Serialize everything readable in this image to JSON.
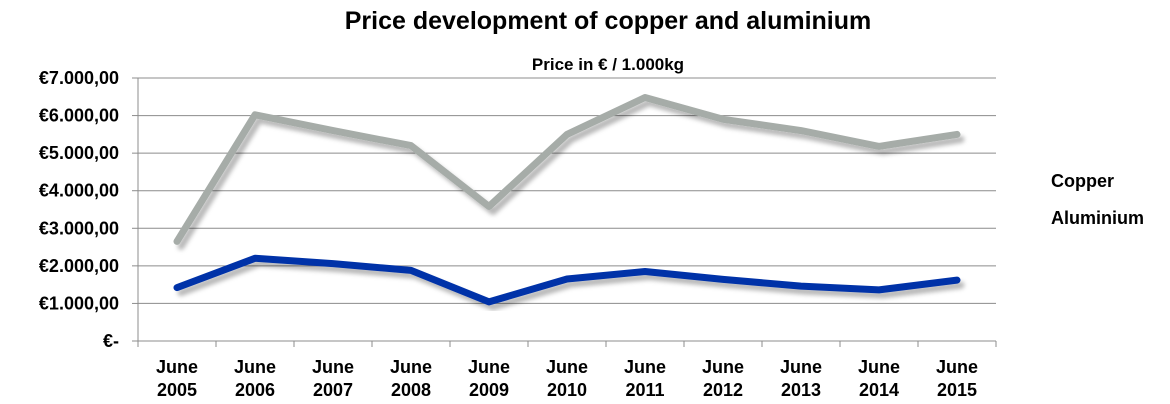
{
  "chart_data": {
    "type": "line",
    "title": "Price development of copper and aluminium",
    "subtitle": "Price in € / 1.000kg",
    "x": [
      [
        "June",
        "2005"
      ],
      [
        "June",
        "2006"
      ],
      [
        "June",
        "2007"
      ],
      [
        "June",
        "2008"
      ],
      [
        "June",
        "2009"
      ],
      [
        "June",
        "2010"
      ],
      [
        "June",
        "2011"
      ],
      [
        "June",
        "2012"
      ],
      [
        "June",
        "2013"
      ],
      [
        "June",
        "2014"
      ],
      [
        "June",
        "2015"
      ]
    ],
    "yticks": [
      0,
      1000,
      2000,
      3000,
      4000,
      5000,
      6000,
      7000
    ],
    "ytick_labels": [
      "€-",
      "€1.000,00",
      "€2.000,00",
      "€3.000,00",
      "€4.000,00",
      "€5.000,00",
      "€6.000,00",
      "€7.000,00"
    ],
    "ylim": [
      0,
      7000
    ],
    "grid": true,
    "legend_position": "right",
    "series": [
      {
        "name": "Copper",
        "color": "#a6aca8",
        "values": [
          2650,
          6020,
          5600,
          5200,
          3580,
          5500,
          6480,
          5900,
          5600,
          5180,
          5500
        ]
      },
      {
        "name": "Aluminium",
        "color": "#0033a8",
        "values": [
          1420,
          2200,
          2060,
          1880,
          1040,
          1650,
          1850,
          1640,
          1460,
          1360,
          1620
        ]
      }
    ]
  }
}
